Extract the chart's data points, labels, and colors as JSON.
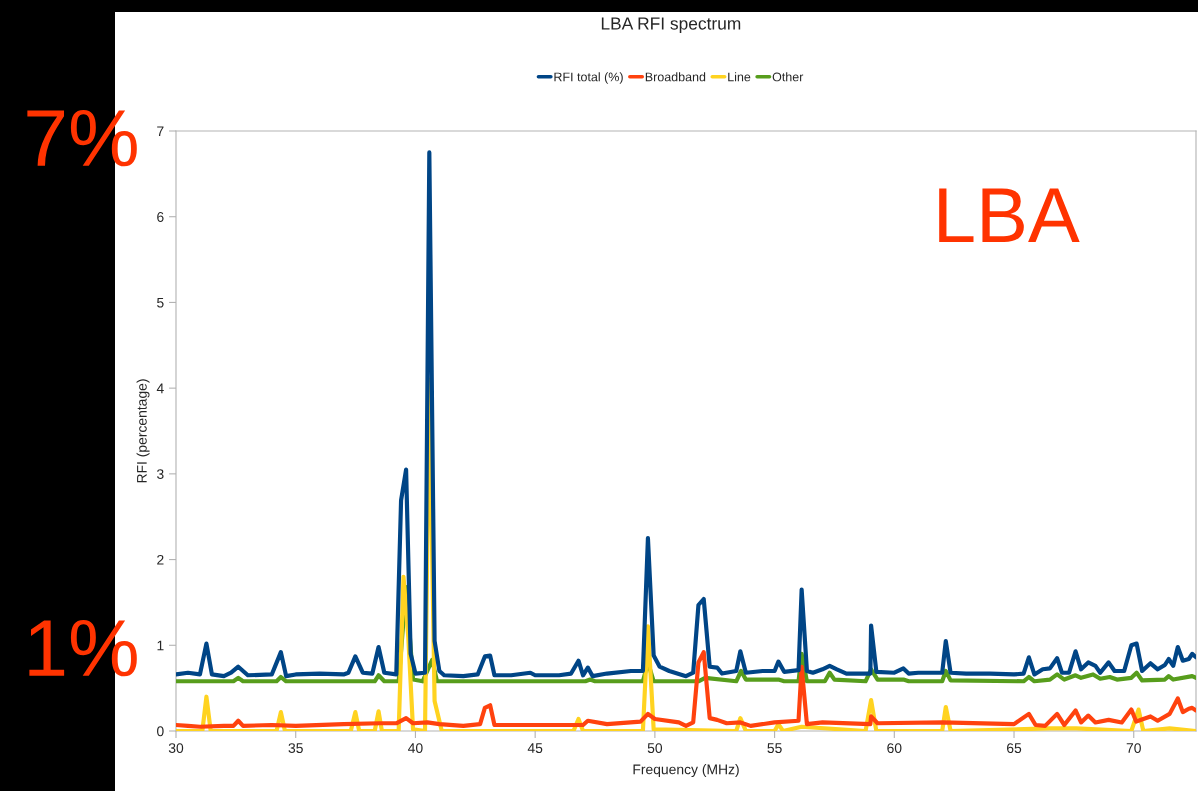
{
  "chart_data": {
    "type": "line",
    "title": "LBA RFI spectrum",
    "xlabel": "Frequency (MHz)",
    "ylabel": "RFI (percentage)",
    "annotations": [
      "7%",
      "1%",
      "LBA"
    ],
    "xlim": [
      30,
      72.6
    ],
    "xticks": [
      30,
      35,
      40,
      45,
      50,
      55,
      60,
      65,
      70
    ],
    "ylim": [
      0,
      7
    ],
    "yticks": [
      0,
      1,
      2,
      3,
      4,
      5,
      6,
      7
    ],
    "grid": false,
    "legend": "top",
    "marker": "none",
    "line_style": "solid",
    "series": [
      {
        "name": "RFI total (%)",
        "color": "#004586",
        "x": [
          30,
          30.5,
          31,
          31.27,
          31.5,
          32,
          32.3,
          32.6,
          33,
          34,
          34.38,
          34.6,
          35,
          36,
          37,
          37.2,
          37.49,
          37.8,
          38.2,
          38.46,
          38.7,
          39.2,
          39.4,
          39.61,
          39.8,
          40,
          40.4,
          40.58,
          40.8,
          41,
          41.2,
          42,
          42.6,
          42.9,
          43.12,
          43.3,
          44,
          44.8,
          45,
          46,
          46.5,
          46.81,
          47,
          47.2,
          47.4,
          48,
          49,
          49.5,
          49.71,
          49.95,
          50.2,
          50.6,
          51.3,
          51.6,
          51.82,
          52.04,
          52.29,
          52.6,
          52.8,
          53.4,
          53.57,
          53.8,
          54.5,
          55,
          55.16,
          55.4,
          56,
          56.13,
          56.35,
          56.6,
          57,
          57.3,
          57.6,
          58,
          59,
          59.03,
          59.25,
          60,
          60.38,
          60.6,
          61,
          62,
          62.15,
          62.35,
          63,
          64,
          65,
          65.4,
          65.62,
          65.85,
          66.2,
          66.5,
          66.8,
          67,
          67.3,
          67.57,
          67.8,
          68.1,
          68.4,
          68.6,
          68.95,
          69.2,
          69.6,
          69.9,
          70.12,
          70.35,
          70.7,
          71,
          71.3,
          71.46,
          71.65,
          71.84,
          72.05,
          72.3,
          72.44,
          72.6
        ],
        "values": [
          0.66,
          0.68,
          0.66,
          1.02,
          0.66,
          0.64,
          0.68,
          0.75,
          0.65,
          0.66,
          0.92,
          0.64,
          0.66,
          0.67,
          0.66,
          0.68,
          0.87,
          0.68,
          0.67,
          0.98,
          0.68,
          0.66,
          2.69,
          3.05,
          0.9,
          0.67,
          0.68,
          6.75,
          1.05,
          0.7,
          0.65,
          0.64,
          0.66,
          0.87,
          0.88,
          0.65,
          0.65,
          0.68,
          0.65,
          0.65,
          0.67,
          0.82,
          0.65,
          0.74,
          0.64,
          0.67,
          0.7,
          0.7,
          2.25,
          0.88,
          0.75,
          0.7,
          0.64,
          0.68,
          1.47,
          1.54,
          0.75,
          0.74,
          0.67,
          0.7,
          0.93,
          0.68,
          0.7,
          0.7,
          0.81,
          0.69,
          0.71,
          1.65,
          0.7,
          0.68,
          0.72,
          0.76,
          0.72,
          0.67,
          0.67,
          1.23,
          0.69,
          0.68,
          0.73,
          0.67,
          0.68,
          0.68,
          1.05,
          0.68,
          0.67,
          0.67,
          0.66,
          0.67,
          0.86,
          0.66,
          0.72,
          0.73,
          0.85,
          0.68,
          0.68,
          0.93,
          0.72,
          0.8,
          0.76,
          0.68,
          0.8,
          0.7,
          0.7,
          1.0,
          1.02,
          0.7,
          0.79,
          0.72,
          0.77,
          0.84,
          0.76,
          0.98,
          0.82,
          0.84,
          0.9,
          0.86
        ]
      },
      {
        "name": "Broadband",
        "color": "#ff420e",
        "x": [
          30,
          30.5,
          31,
          32,
          32.4,
          32.6,
          32.8,
          34,
          35,
          37,
          38.5,
          39.2,
          39.61,
          39.9,
          40.5,
          41,
          42,
          42.7,
          42.9,
          43.12,
          43.3,
          45,
          47,
          47.2,
          48,
          49.4,
          49.71,
          50,
          51,
          51.3,
          51.6,
          51.82,
          52.04,
          52.29,
          52.6,
          53,
          53.57,
          54,
          55,
          56,
          56.13,
          56.35,
          57,
          59,
          59.03,
          59.3,
          62,
          65,
          65.62,
          65.9,
          66.3,
          66.8,
          67.1,
          67.57,
          67.8,
          68.1,
          68.4,
          68.95,
          69.5,
          69.9,
          70.1,
          70.7,
          71,
          71.5,
          71.84,
          72.05,
          72.3,
          72.44,
          72.6
        ],
        "values": [
          0.07,
          0.06,
          0.05,
          0.06,
          0.06,
          0.12,
          0.06,
          0.07,
          0.06,
          0.08,
          0.09,
          0.09,
          0.15,
          0.09,
          0.1,
          0.08,
          0.06,
          0.08,
          0.27,
          0.3,
          0.07,
          0.07,
          0.07,
          0.12,
          0.08,
          0.11,
          0.2,
          0.14,
          0.1,
          0.06,
          0.1,
          0.8,
          0.92,
          0.15,
          0.13,
          0.09,
          0.1,
          0.06,
          0.1,
          0.12,
          0.75,
          0.08,
          0.1,
          0.08,
          0.17,
          0.09,
          0.1,
          0.08,
          0.2,
          0.07,
          0.06,
          0.2,
          0.07,
          0.24,
          0.1,
          0.18,
          0.1,
          0.13,
          0.1,
          0.25,
          0.11,
          0.17,
          0.12,
          0.2,
          0.38,
          0.22,
          0.26,
          0.27,
          0.24
        ]
      },
      {
        "name": "Line",
        "color": "#ffd320",
        "x": [
          30,
          31.1,
          31.27,
          31.45,
          34.2,
          34.38,
          34.55,
          37.3,
          37.49,
          37.65,
          38.3,
          38.46,
          38.6,
          39.3,
          39.5,
          39.7,
          39.9,
          40.4,
          40.58,
          40.8,
          41.1,
          46.6,
          46.81,
          47,
          49.5,
          49.71,
          49.95,
          53.4,
          53.57,
          53.8,
          55,
          55.16,
          55.35,
          56.13,
          58.8,
          59.03,
          59.25,
          62,
          62.15,
          62.35,
          66.5,
          67.6,
          69.9,
          70.2,
          70.4,
          71.5,
          72.6
        ],
        "values": [
          0.0,
          0.0,
          0.4,
          0.0,
          0.0,
          0.22,
          0.0,
          0.0,
          0.22,
          0.0,
          0.0,
          0.23,
          0.0,
          0.0,
          1.8,
          1.1,
          0.02,
          0.0,
          4.1,
          0.35,
          0.0,
          0.0,
          0.14,
          0.0,
          0.0,
          1.22,
          0.02,
          0.0,
          0.15,
          0.0,
          0.0,
          0.08,
          0.0,
          0.05,
          0.0,
          0.36,
          0.0,
          0.0,
          0.28,
          0.0,
          0.03,
          0.03,
          0.0,
          0.25,
          0.0,
          0.03,
          0.0
        ]
      },
      {
        "name": "Other",
        "color": "#579d1c",
        "x": [
          30,
          32.4,
          32.6,
          32.8,
          34.2,
          34.38,
          34.6,
          38.3,
          38.46,
          38.7,
          39.3,
          39.61,
          39.9,
          40.3,
          40.7,
          40.9,
          47.1,
          47.3,
          47.5,
          49.5,
          49.71,
          49.95,
          51.82,
          52.1,
          53.4,
          53.6,
          53.8,
          55.16,
          55.4,
          56,
          56.13,
          56.35,
          57.1,
          57.3,
          57.5,
          58.8,
          59.03,
          59.3,
          60.38,
          60.6,
          62,
          62.15,
          62.35,
          65.4,
          65.62,
          65.85,
          66.5,
          66.8,
          67.1,
          67.57,
          67.8,
          68.3,
          68.6,
          69,
          69.3,
          69.9,
          70.12,
          70.35,
          71.3,
          71.46,
          71.65,
          72.44,
          72.6
        ],
        "values": [
          0.58,
          0.58,
          0.62,
          0.58,
          0.58,
          0.63,
          0.58,
          0.58,
          0.65,
          0.58,
          0.58,
          1.68,
          0.6,
          0.58,
          0.83,
          0.58,
          0.58,
          0.6,
          0.58,
          0.58,
          0.8,
          0.58,
          0.58,
          0.62,
          0.58,
          0.7,
          0.6,
          0.6,
          0.58,
          0.58,
          0.9,
          0.58,
          0.58,
          0.68,
          0.6,
          0.58,
          0.72,
          0.6,
          0.6,
          0.58,
          0.58,
          0.7,
          0.59,
          0.58,
          0.63,
          0.58,
          0.6,
          0.66,
          0.6,
          0.65,
          0.62,
          0.66,
          0.61,
          0.63,
          0.6,
          0.62,
          0.68,
          0.59,
          0.6,
          0.64,
          0.6,
          0.64,
          0.62
        ]
      }
    ]
  }
}
